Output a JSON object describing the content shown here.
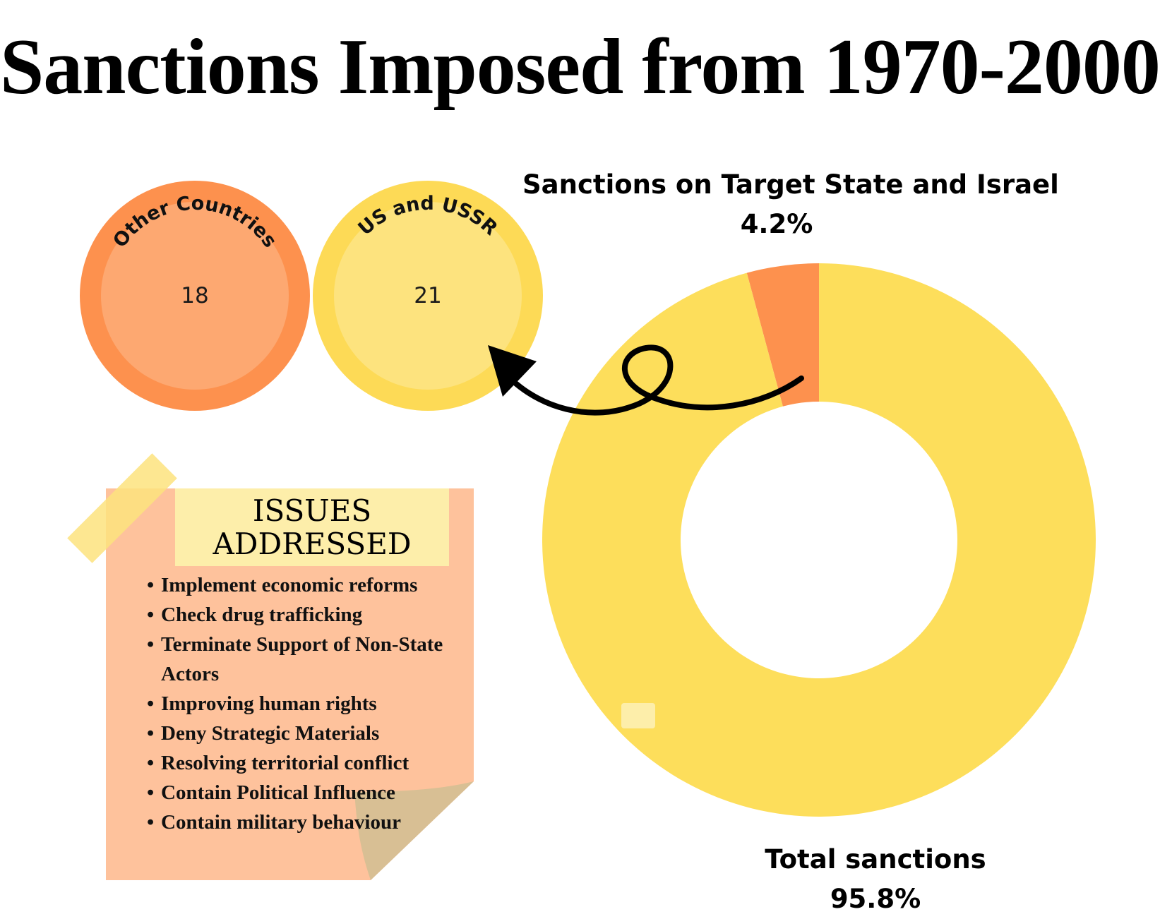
{
  "title": "Sanctions Imposed from 1970-2000",
  "bubbles": [
    {
      "label": "Other Countries",
      "value": "18",
      "color": "#fd914e",
      "inner_color": "#fda871"
    },
    {
      "label": "US and USSR",
      "value": "21",
      "color": "#fdda56",
      "inner_color": "#fde37e"
    }
  ],
  "chart_data": {
    "type": "pie",
    "style": "donut",
    "series": [
      {
        "name": "Sanctions on Target State and Israel",
        "value": 4.2,
        "label": "4.2%",
        "color": "#fd914e"
      },
      {
        "name": "Total sanctions",
        "value": 95.8,
        "label": "95.8%",
        "color": "#fdde5b"
      }
    ],
    "start_angle_deg": 0,
    "direction": "counterclockwise"
  },
  "issues": {
    "heading_line1": "ISSUES",
    "heading_line2": "ADDRESSED",
    "items": [
      "Implement economic reforms",
      "Check drug trafficking",
      "Terminate Support of Non-State Actors",
      "Improving human rights",
      "Deny Strategic Materials",
      "Resolving territorial conflict",
      "Contain Political Influence",
      "Contain military behaviour"
    ],
    "note_color": "#fec29c",
    "fold_color": "#d8bf94",
    "tape_color": "#fde37e"
  }
}
